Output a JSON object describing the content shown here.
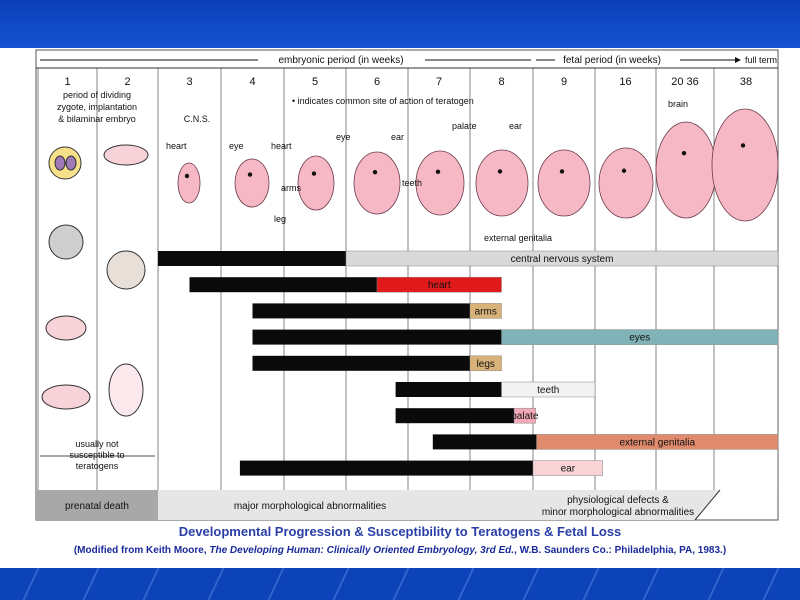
{
  "colors": {
    "band": "#1553d2",
    "black_bar": "#0a0a0a",
    "cns": "#d9d9d9",
    "heart": "#e01a1a",
    "arms": "#d9b27a",
    "eyes": "#7fb3b8",
    "legs": "#d9b27a",
    "teeth": "#f2f2f2",
    "palate": "#f4a9b9",
    "genitalia": "#e08a6e",
    "ear": "#f9d4d4",
    "embryo": "#f7b8c6"
  },
  "header": {
    "embryonic_period": "embryonic period (in weeks)",
    "fetal_period": "fetal period (in weeks)",
    "full_term": "full term"
  },
  "weeks": [
    "1",
    "2",
    "3",
    "4",
    "5",
    "6",
    "7",
    "8",
    "9",
    "16",
    "20 36",
    "38"
  ],
  "notes": {
    "week12": "period of dividing\nzygote, implantation\n& bilaminar embryo",
    "teratogen_site": "• indicates common site of action of teratogen",
    "not_susceptible": "usually not\nsusceptible to\nteratogens"
  },
  "embryo_labels": {
    "cns": "C.N.S.",
    "heart3": "heart",
    "eye4": "eye",
    "heart4": "heart",
    "arms": "arms",
    "leg": "leg",
    "eye5": "eye",
    "ear6": "ear",
    "teeth": "teeth",
    "palate": "palate",
    "ear8": "ear",
    "external_genitalia": "external genitalia",
    "brain": "brain"
  },
  "bars": [
    {
      "label": "central nervous system",
      "start": 3,
      "critical_end": 6,
      "end": 38,
      "color": "cns"
    },
    {
      "label": "heart",
      "start": 3.5,
      "critical_end": 6.5,
      "end": 8.5,
      "color": "heart"
    },
    {
      "label": "arms",
      "start": 4.5,
      "critical_end": 8,
      "end": 8.5,
      "color": "arms"
    },
    {
      "label": "eyes",
      "start": 4.5,
      "critical_end": 8.5,
      "end": 38,
      "color": "eyes"
    },
    {
      "label": "legs",
      "start": 4.5,
      "critical_end": 8,
      "end": 8.5,
      "color": "legs"
    },
    {
      "label": "teeth",
      "start": 6.8,
      "critical_end": 8.5,
      "end": 16,
      "color": "teeth"
    },
    {
      "label": "palate",
      "start": 6.8,
      "critical_end": 8.7,
      "end": 9.3,
      "color": "palate"
    },
    {
      "label": "external genitalia",
      "start": 7.4,
      "critical_end": 9.4,
      "end": 38,
      "color": "genitalia"
    },
    {
      "label": "ear",
      "start": 4.3,
      "critical_end": 9,
      "end": 16.5,
      "color": "ear"
    }
  ],
  "footer": {
    "prenatal_death": "prenatal death",
    "major": "major morphological abnormalities",
    "physiological": "physiological defects &\nminor morphological abnormalities"
  },
  "caption": {
    "title": "Developmental Progression & Susceptibility to Teratogens & Fetal Loss",
    "source_pre": "(Modified from Keith Moore, ",
    "source_book": "The Developing Human: Clinically Oriented Embryology, 3rd Ed.",
    "source_post": ", W.B. Saunders Co.: Philadelphia, PA, 1983.)"
  }
}
